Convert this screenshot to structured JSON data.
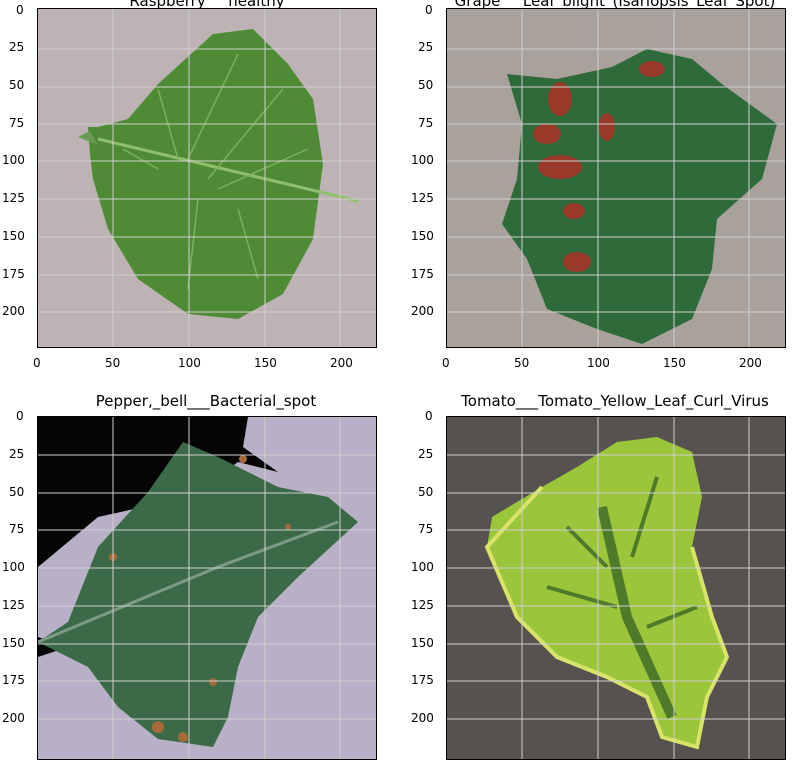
{
  "panels": [
    {
      "title": "Raspberry___healthy",
      "yticks": [
        "0",
        "25",
        "50",
        "75",
        "100",
        "125",
        "150",
        "175",
        "200"
      ],
      "xticks": [
        "0",
        "50",
        "100",
        "150",
        "200"
      ],
      "colors": {
        "bg": "#bdb3b5",
        "leaf": "#4f8a35",
        "vein": "#8fbf6a"
      }
    },
    {
      "title": "Grape___Leaf_blight_(Isariopsis_Leaf_Spot)",
      "yticks": [
        "0",
        "25",
        "50",
        "75",
        "100",
        "125",
        "150",
        "175",
        "200"
      ],
      "xticks": [
        "0",
        "50",
        "100",
        "150",
        "200"
      ],
      "colors": {
        "bg": "#a9a19c",
        "leaf": "#2f6a3a",
        "spot": "#9a3a2a"
      }
    },
    {
      "title": "Pepper,_bell___Bacterial_spot",
      "yticks": [
        "0",
        "25",
        "50",
        "75",
        "100",
        "125",
        "150",
        "175",
        "200"
      ],
      "xticks": [],
      "colors": {
        "bg": "#b8b0c6",
        "leaf": "#3c6a48",
        "dark": "#050505"
      }
    },
    {
      "title": "Tomato___Tomato_Yellow_Leaf_Curl_Virus",
      "yticks": [
        "0",
        "25",
        "50",
        "75",
        "100",
        "125",
        "150",
        "175",
        "200"
      ],
      "xticks": [],
      "colors": {
        "bg": "#55524f",
        "leaf": "#9bc53a",
        "center": "#4f7a2a"
      }
    }
  ]
}
